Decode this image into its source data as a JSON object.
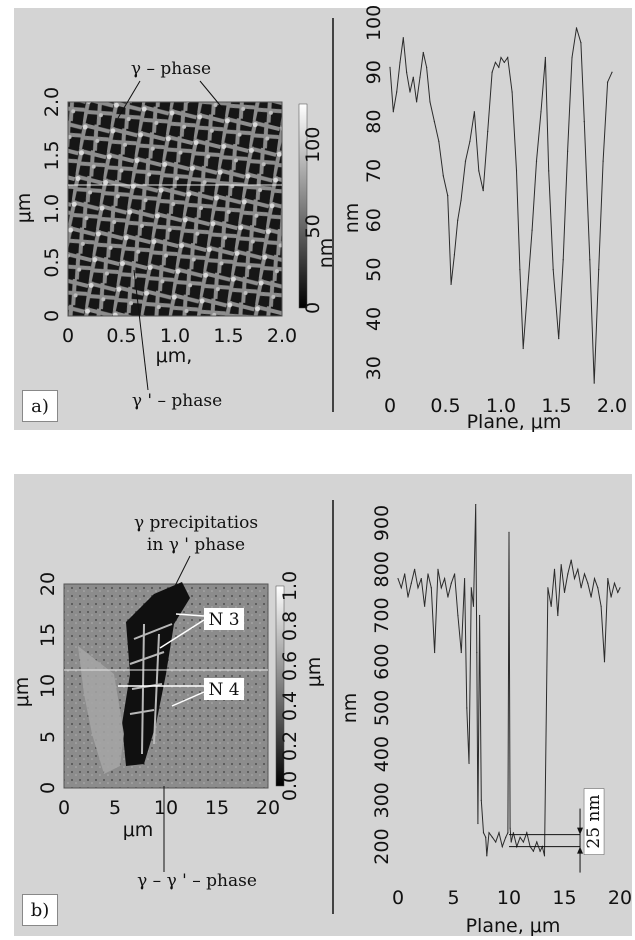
{
  "panels": [
    {
      "id": "a",
      "label": "a)",
      "image": {
        "x_ticks": [
          "0",
          "0.5",
          "1.0",
          "1.5",
          "2.0"
        ],
        "y_ticks": [
          "0",
          "0.5",
          "1.0",
          "1.5",
          "2.0"
        ],
        "x_unit": "μm,",
        "y_unit": "μm",
        "colorbar_ticks": [
          "0",
          "50",
          "100"
        ],
        "colorbar_unit": "nm",
        "annotations": [
          "γ – phase",
          "γ ' – phase"
        ]
      },
      "chart_data": {
        "type": "line",
        "x": [
          0,
          0.03,
          0.06,
          0.09,
          0.12,
          0.15,
          0.18,
          0.21,
          0.24,
          0.27,
          0.3,
          0.33,
          0.36,
          0.4,
          0.44,
          0.48,
          0.52,
          0.55,
          0.58,
          0.61,
          0.64,
          0.68,
          0.72,
          0.76,
          0.8,
          0.84,
          0.88,
          0.92,
          0.95,
          0.98,
          1.0,
          1.03,
          1.06,
          1.1,
          1.14,
          1.17,
          1.2,
          1.24,
          1.28,
          1.32,
          1.36,
          1.4,
          1.43,
          1.47,
          1.52,
          1.56,
          1.6,
          1.64,
          1.68,
          1.72,
          1.75,
          1.8,
          1.84,
          1.88,
          1.92,
          1.96,
          2.0
        ],
        "y": [
          91,
          82,
          86,
          92,
          97,
          90,
          86,
          89,
          84,
          89,
          94,
          91,
          84,
          80,
          76,
          69,
          65,
          47,
          53,
          60,
          64,
          72,
          76,
          82,
          70,
          66,
          78,
          90,
          92,
          91,
          93,
          92,
          93,
          86,
          70,
          50,
          34,
          46,
          58,
          72,
          82,
          93,
          70,
          50,
          36,
          52,
          74,
          93,
          99,
          96,
          80,
          52,
          27,
          50,
          72,
          88,
          90
        ],
        "xlabel": "Plane, μm",
        "ylabel": "nm",
        "x_ticks": [
          "0",
          "0.5",
          "1.0",
          "1.5",
          "2.0"
        ],
        "y_ticks": [
          "30",
          "40",
          "50",
          "60",
          "70",
          "80",
          "90",
          "100"
        ],
        "xlim": [
          0,
          2.0
        ],
        "ylim": [
          26,
          101
        ]
      }
    },
    {
      "id": "b",
      "label": "b)",
      "image": {
        "x_ticks": [
          "0",
          "5",
          "10",
          "15",
          "20"
        ],
        "y_ticks": [
          "0",
          "5",
          "10",
          "15",
          "20"
        ],
        "x_unit": "μm",
        "y_unit": "μm",
        "colorbar_ticks": [
          "0.0",
          "0.2",
          "0.4",
          "0.6",
          "0.8",
          "1.0"
        ],
        "colorbar_unit": "μm",
        "annotations": [
          "γ precipitatios",
          "in γ ' phase",
          "N 3",
          "N 4",
          "γ – γ ' – phase"
        ]
      },
      "chart_data": {
        "type": "line",
        "x": [
          0,
          0.3,
          0.6,
          0.9,
          1.2,
          1.5,
          1.8,
          2.1,
          2.4,
          2.7,
          3.0,
          3.3,
          3.6,
          3.9,
          4.2,
          4.5,
          4.8,
          5.1,
          5.4,
          5.7,
          6.0,
          6.2,
          6.4,
          6.6,
          6.8,
          7.0,
          7.1,
          7.2,
          7.35,
          7.5,
          7.7,
          7.9,
          8.0,
          8.2,
          8.5,
          8.8,
          9.1,
          9.4,
          9.7,
          9.9,
          10.0,
          10.1,
          10.2,
          10.4,
          10.7,
          11.0,
          11.3,
          11.6,
          11.9,
          12.2,
          12.5,
          12.8,
          13.0,
          13.2,
          13.5,
          13.8,
          14.1,
          14.4,
          14.7,
          15.0,
          15.3,
          15.6,
          15.9,
          16.2,
          16.5,
          16.8,
          17.1,
          17.4,
          17.7,
          18.0,
          18.3,
          18.6,
          18.9,
          19.2,
          19.5,
          19.8,
          20.0
        ],
        "y": [
          780,
          760,
          790,
          740,
          770,
          800,
          760,
          780,
          720,
          790,
          760,
          620,
          800,
          760,
          780,
          740,
          770,
          790,
          700,
          620,
          780,
          500,
          380,
          760,
          720,
          940,
          620,
          250,
          700,
          300,
          230,
          220,
          180,
          230,
          220,
          210,
          230,
          200,
          220,
          230,
          880,
          240,
          210,
          230,
          200,
          220,
          210,
          230,
          200,
          190,
          210,
          190,
          200,
          180,
          760,
          720,
          800,
          700,
          810,
          750,
          790,
          820,
          780,
          800,
          760,
          790,
          770,
          740,
          780,
          760,
          720,
          600,
          780,
          740,
          770,
          750,
          760
        ],
        "xlabel": "Plane, μm",
        "ylabel": "nm",
        "x_ticks": [
          "0",
          "5",
          "10",
          "15",
          "20"
        ],
        "y_ticks": [
          "200",
          "300",
          "400",
          "500",
          "600",
          "700",
          "800",
          "900"
        ],
        "xlim": [
          0,
          20
        ],
        "ylim": [
          145,
          950
        ],
        "annotations": [
          "25 nm"
        ]
      }
    }
  ]
}
